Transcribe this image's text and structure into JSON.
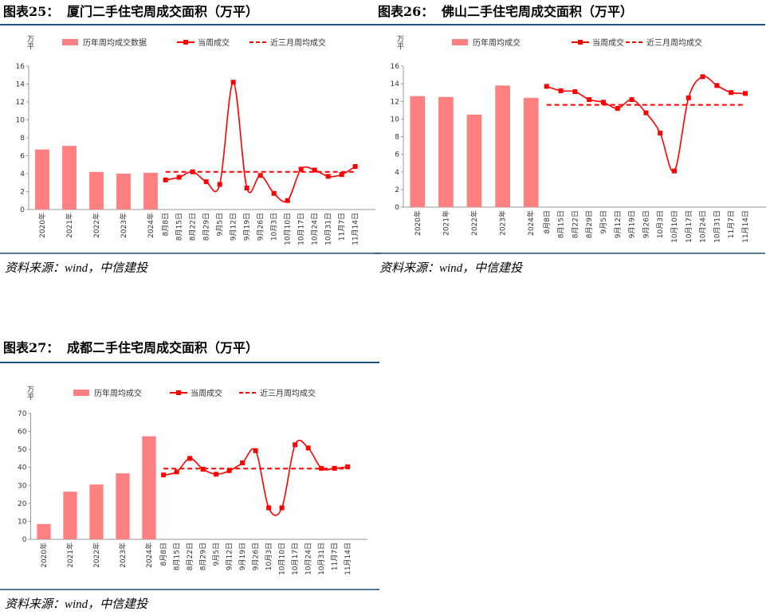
{
  "panels": [
    {
      "label": "图表25：",
      "title": "厦门二手住宅周成交面积（万平）",
      "source": "资料来源：wind，中信建投",
      "chart_data": {
        "type": "bar",
        "ylabel": "万平",
        "categories": [
          "2020年",
          "2021年",
          "2022年",
          "2023年",
          "2024年",
          "8月8日",
          "8月15日",
          "8月22日",
          "8月29日",
          "9月5日",
          "9月12日",
          "9月19日",
          "9月26日",
          "10月3日",
          "10月10日",
          "10月17日",
          "10月24日",
          "10月31日",
          "11月7日",
          "11月14日"
        ],
        "ylim": [
          0,
          16
        ],
        "yticks": [
          0,
          2,
          4,
          6,
          8,
          10,
          12,
          14,
          16
        ],
        "series": [
          {
            "name": "历年周均成交数据",
            "type": "bar",
            "color": "#ff8080",
            "values": [
              6.7,
              7.1,
              4.2,
              4.0,
              4.1,
              null,
              null,
              null,
              null,
              null,
              null,
              null,
              null,
              null,
              null,
              null,
              null,
              null,
              null,
              null
            ]
          },
          {
            "name": "当周成交",
            "type": "line",
            "smooth": true,
            "color": "#ff0000",
            "values": [
              null,
              null,
              null,
              null,
              null,
              3.3,
              3.6,
              4.2,
              3.1,
              2.8,
              14.2,
              2.4,
              3.8,
              1.8,
              1.0,
              4.5,
              4.4,
              3.7,
              3.9,
              4.8
            ]
          },
          {
            "name": "近三月周均成交",
            "type": "line",
            "dashed": true,
            "color": "#ff0000",
            "values": [
              null,
              null,
              null,
              null,
              null,
              4.2,
              4.2,
              4.2,
              4.2,
              4.2,
              4.2,
              4.2,
              4.2,
              4.2,
              4.2,
              4.2,
              4.2,
              4.2,
              4.2,
              4.2
            ]
          }
        ]
      }
    },
    {
      "label": "图表26：",
      "title": "佛山二手住宅周成交面积（万平）",
      "source": "资料来源：wind，中信建投",
      "chart_data": {
        "type": "bar",
        "ylabel": "万平",
        "categories": [
          "2020年",
          "2021年",
          "2022年",
          "2023年",
          "2024年",
          "8月8日",
          "8月15日",
          "8月22日",
          "8月29日",
          "9月5日",
          "9月12日",
          "9月19日",
          "9月26日",
          "10月3日",
          "10月10日",
          "10月17日",
          "10月24日",
          "10月31日",
          "11月7日",
          "11月14日"
        ],
        "ylim": [
          0,
          16
        ],
        "yticks": [
          0,
          2,
          4,
          6,
          8,
          10,
          12,
          14,
          16
        ],
        "series": [
          {
            "name": "历年周均成交",
            "type": "bar",
            "color": "#ff8080",
            "values": [
              12.6,
              12.5,
              10.5,
              13.8,
              12.4,
              null,
              null,
              null,
              null,
              null,
              null,
              null,
              null,
              null,
              null,
              null,
              null,
              null,
              null,
              null
            ]
          },
          {
            "name": "当周成交",
            "type": "line",
            "smooth": true,
            "color": "#ff0000",
            "values": [
              null,
              null,
              null,
              null,
              null,
              13.7,
              13.2,
              13.1,
              12.2,
              11.9,
              11.2,
              12.2,
              10.7,
              8.4,
              4.1,
              12.4,
              14.8,
              13.8,
              13.0,
              12.9
            ]
          },
          {
            "name": "近三月周均成交",
            "type": "line",
            "dashed": true,
            "color": "#ff0000",
            "values": [
              null,
              null,
              null,
              null,
              null,
              11.6,
              11.6,
              11.6,
              11.6,
              11.6,
              11.6,
              11.6,
              11.6,
              11.6,
              11.6,
              11.6,
              11.6,
              11.6,
              11.6,
              11.6
            ]
          }
        ]
      }
    },
    {
      "label": "图表27：",
      "title": "成都二手住宅周成交面积（万平）",
      "source": "资料来源：wind，中信建投",
      "chart_data": {
        "type": "bar",
        "ylabel": "万平",
        "categories": [
          "2020年",
          "2021年",
          "2022年",
          "2023年",
          "2024年",
          "8月8日",
          "8月15日",
          "8月22日",
          "8月29日",
          "9月5日",
          "9月12日",
          "9月19日",
          "9月26日",
          "10月3日",
          "10月10日",
          "10月17日",
          "10月24日",
          "10月31日",
          "11月7日",
          "11月14日"
        ],
        "ylim": [
          0,
          70
        ],
        "yticks": [
          0,
          10,
          20,
          30,
          40,
          50,
          60,
          70
        ],
        "series": [
          {
            "name": "历年周均成交",
            "type": "bar",
            "color": "#ff8080",
            "values": [
              8.5,
              26.5,
              30.5,
              36.7,
              57.3,
              null,
              null,
              null,
              null,
              null,
              null,
              null,
              null,
              null,
              null,
              null,
              null,
              null,
              null,
              null
            ]
          },
          {
            "name": "当周成交",
            "type": "line",
            "smooth": true,
            "color": "#ff0000",
            "values": [
              null,
              null,
              null,
              null,
              null,
              35.8,
              37.5,
              45.0,
              39.0,
              36.2,
              38.2,
              42.5,
              49.3,
              17.5,
              17.5,
              52.6,
              50.8,
              39.5,
              39.5,
              40.3
            ]
          },
          {
            "name": "近三月周均成交",
            "type": "line",
            "dashed": true,
            "color": "#ff0000",
            "values": [
              null,
              null,
              null,
              null,
              null,
              39.3,
              39.3,
              39.3,
              39.3,
              39.3,
              39.3,
              39.3,
              39.3,
              39.3,
              39.3,
              39.3,
              39.3,
              39.3,
              39.3,
              39.3
            ]
          }
        ]
      }
    }
  ]
}
